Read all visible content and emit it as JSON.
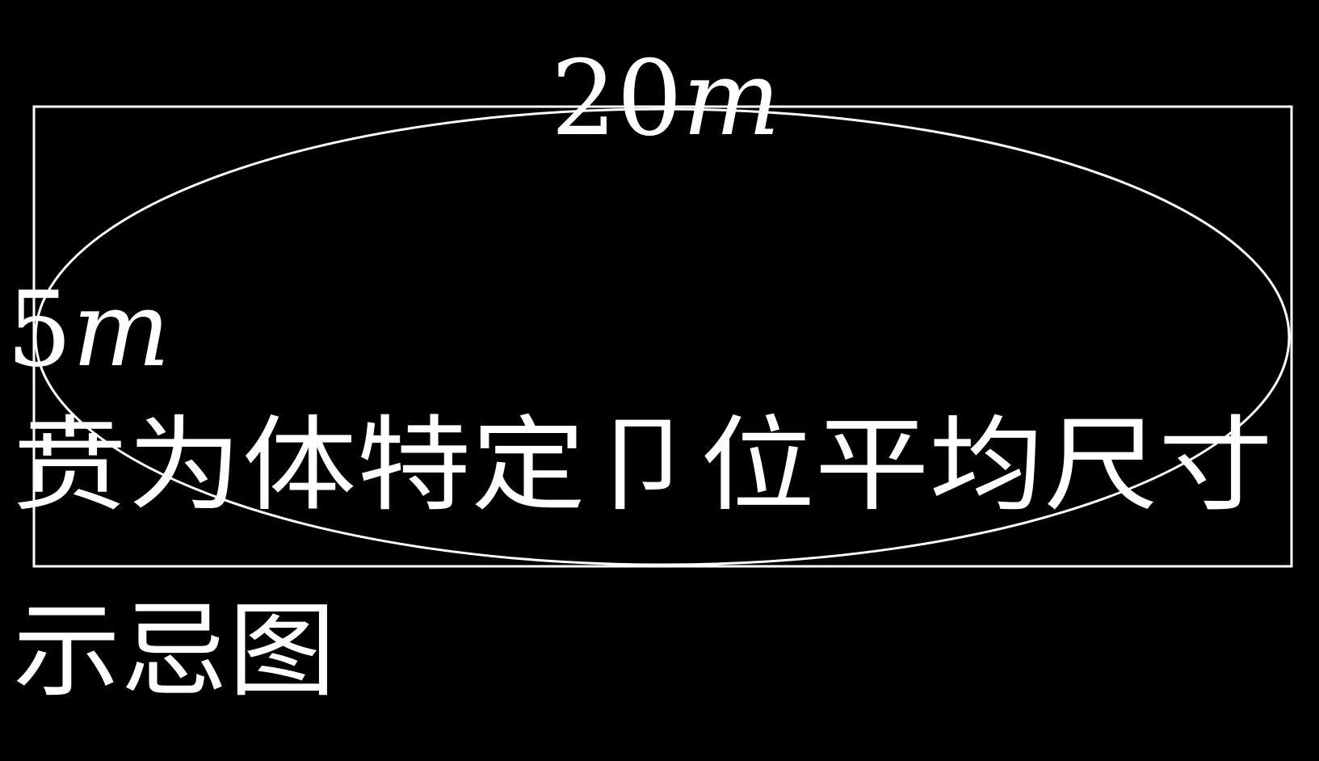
{
  "dimensions": {
    "width": {
      "value": "20",
      "unit": "m"
    },
    "height": {
      "value": "5",
      "unit": "m"
    }
  },
  "caption": {
    "line1": "贲为体特定卩位平均尺寸",
    "line2": "示忌图"
  },
  "colors": {
    "background": "#000000",
    "foreground": "#ffffff"
  }
}
